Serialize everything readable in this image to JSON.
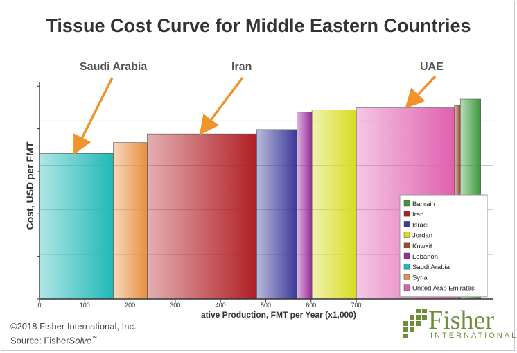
{
  "title": "Tissue Cost Curve for Middle Eastern Countries",
  "annotations": [
    {
      "label": "Saudi Arabia",
      "target_x": 80
    },
    {
      "label": "Iran",
      "target_x": 360
    },
    {
      "label": "UAE",
      "target_x": 815
    }
  ],
  "footer": {
    "copyright": "©2018 Fisher International, Inc.",
    "source_prefix": "Source: Fisher",
    "source_italic": "Solve",
    "source_tm": "™"
  },
  "logo": {
    "name": "Fisher",
    "sub": "INTERNATIONAL"
  },
  "chart_data": {
    "type": "bar",
    "subtype": "cost-curve (variable-width bars)",
    "title": "Tissue Cost Curve for Middle Eastern Countries",
    "xlabel": "ative Production, FMT per Year (x1,000)",
    "ylabel": "Cost, USD per FMT",
    "xlim": [
      0,
      960
    ],
    "x_ticks": [
      0,
      100,
      200,
      300,
      400,
      500,
      600,
      700
    ],
    "y_range_relative": [
      0,
      1
    ],
    "y_gridlines": 4,
    "grid": true,
    "legend_position": "bottom-right",
    "colors": {
      "Bahrain": "#3a9a3a",
      "Iran": "#b01e24",
      "Israel": "#3a3a9a",
      "Jordan": "#d8dc20",
      "Kuwait": "#9a4a2a",
      "Lebanon": "#9a2a9a",
      "Saudi Arabia": "#20b8b8",
      "Syria": "#e89040",
      "United Arab Emirates": "#e060b0"
    },
    "legend": [
      "Bahrain",
      "Iran",
      "Israel",
      "Jordan",
      "Kuwait",
      "Lebanon",
      "Saudi Arabia",
      "Syria",
      "United Arab Emirates"
    ],
    "bars": [
      {
        "country": "Saudi Arabia",
        "x_start": 0,
        "x_end": 163,
        "cost": 0.67
      },
      {
        "country": "Syria",
        "x_start": 163,
        "x_end": 238,
        "cost": 0.72
      },
      {
        "country": "Iran",
        "x_start": 238,
        "x_end": 480,
        "cost": 0.76
      },
      {
        "country": "Israel",
        "x_start": 480,
        "x_end": 569,
        "cost": 0.78
      },
      {
        "country": "Lebanon",
        "x_start": 569,
        "x_end": 602,
        "cost": 0.86
      },
      {
        "country": "Jordan",
        "x_start": 602,
        "x_end": 700,
        "cost": 0.87
      },
      {
        "country": "United Arab Emirates",
        "x_start": 700,
        "x_end": 917,
        "cost": 0.88
      },
      {
        "country": "Kuwait",
        "x_start": 917,
        "x_end": 930,
        "cost": 0.89
      },
      {
        "country": "Bahrain",
        "x_start": 930,
        "x_end": 975,
        "cost": 0.92
      }
    ]
  }
}
